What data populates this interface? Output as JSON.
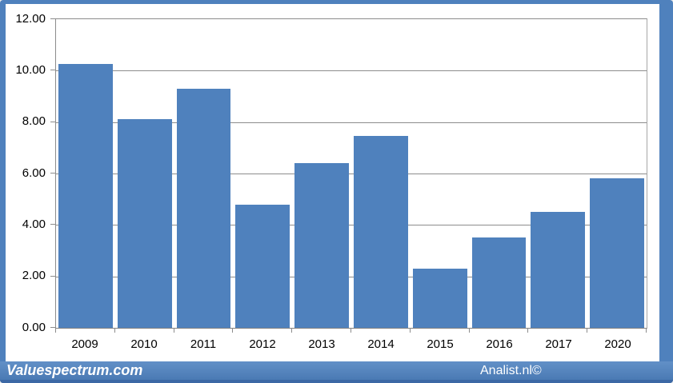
{
  "chart_data": {
    "type": "bar",
    "categories": [
      "2009",
      "2010",
      "2011",
      "2012",
      "2013",
      "2014",
      "2015",
      "2016",
      "2017",
      "2020"
    ],
    "values": [
      10.25,
      8.1,
      9.3,
      4.8,
      6.4,
      7.45,
      2.3,
      3.5,
      4.5,
      5.8
    ],
    "title": "",
    "xlabel": "",
    "ylabel": "",
    "ylim": [
      0,
      12
    ],
    "ytick_step": 2,
    "ytick_labels": [
      "0.00",
      "2.00",
      "4.00",
      "6.00",
      "8.00",
      "10.00",
      "12.00"
    ],
    "grid": true,
    "legend_position": "none",
    "bar_color": "#4f81bd",
    "gridline_color": "#8c8c8c"
  },
  "frame": {
    "border_color": "#4f81bd",
    "panel_background": "#ffffff"
  },
  "footer": {
    "left_brand": "Valuespectrum.com",
    "right_brand": "Analist.nl©",
    "background": "#4f81bd",
    "text_color": "#ffffff"
  }
}
